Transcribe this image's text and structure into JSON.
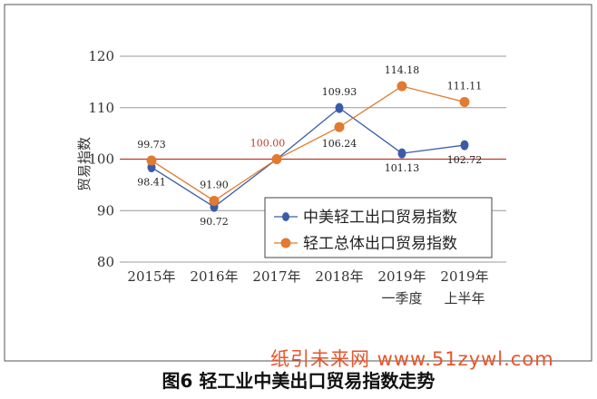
{
  "chart_data": {
    "type": "line",
    "categories": [
      "2015年",
      "2016年",
      "2017年",
      "2018年",
      "2019年",
      "2019年"
    ],
    "categories_line2": [
      "",
      "",
      "",
      "",
      "一季度",
      "上半年"
    ],
    "ylabel": "贸易指数",
    "ylim": [
      80,
      120
    ],
    "yticks": [
      80,
      90,
      100,
      110,
      120
    ],
    "reference_line": 100,
    "grid": "horizontal",
    "legend_position": "lower-right",
    "series": [
      {
        "name": "中美轻工出口贸易指数",
        "color": "#3a5ca8",
        "values": [
          98.41,
          90.72,
          100.0,
          109.93,
          101.13,
          102.72
        ],
        "labels": [
          "98.41",
          "90.72",
          "",
          "109.93",
          "101.13",
          "102.72"
        ]
      },
      {
        "name": "轻工总体出口贸易指数",
        "color": "#e07b2f",
        "values": [
          99.73,
          91.9,
          100.0,
          106.24,
          114.18,
          111.11
        ],
        "labels": [
          "99.73",
          "91.90",
          "100.00",
          "106.24",
          "114.18",
          "111.11"
        ]
      }
    ],
    "colors": {
      "reference": "#c0392b",
      "grid": "#999999",
      "highlight_label": "#c0392b"
    }
  },
  "watermark": "纸引未来网 www.51zywl.com",
  "caption": "图6   轻工业中美出口贸易指数走势"
}
